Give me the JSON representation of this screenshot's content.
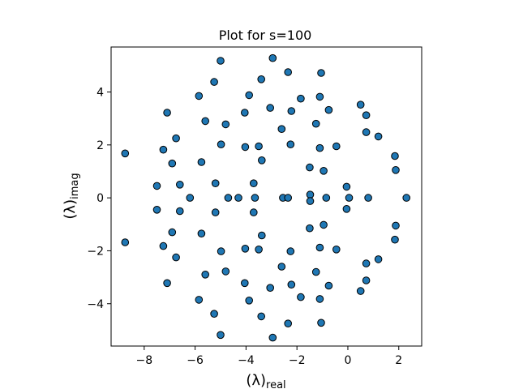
{
  "chart_data": {
    "type": "scatter",
    "title": "Plot for s=100",
    "xlabel": {
      "base": "(λ)",
      "subscript": "real"
    },
    "ylabel": {
      "base": "(λ)",
      "subscript": "imag"
    },
    "xlim": [
      -9.3,
      2.9
    ],
    "ylim": [
      -5.6,
      5.7
    ],
    "xticks": [
      -8,
      -6,
      -4,
      -2,
      0,
      2
    ],
    "yticks": [
      -4,
      -2,
      0,
      2,
      4
    ],
    "xtick_labels": [
      "−8",
      "−6",
      "−4",
      "−2",
      "0",
      "2"
    ],
    "ytick_labels": [
      "−4",
      "−2",
      "0",
      "2",
      "4"
    ],
    "grid": false,
    "marker_color": "#1f77b4",
    "marker_edge_color": "#000000",
    "points": [
      [
        -8.75,
        1.68
      ],
      [
        -8.75,
        -1.68
      ],
      [
        -7.5,
        0.45
      ],
      [
        -7.5,
        -0.45
      ],
      [
        -7.25,
        1.82
      ],
      [
        -7.25,
        -1.82
      ],
      [
        -7.1,
        3.22
      ],
      [
        -7.1,
        -3.22
      ],
      [
        -6.9,
        1.3
      ],
      [
        -6.9,
        -1.3
      ],
      [
        -6.75,
        2.25
      ],
      [
        -6.75,
        -2.25
      ],
      [
        -6.6,
        0.5
      ],
      [
        -6.6,
        -0.5
      ],
      [
        -6.2,
        0.0
      ],
      [
        -5.85,
        3.85
      ],
      [
        -5.85,
        -3.85
      ],
      [
        -5.75,
        1.35
      ],
      [
        -5.75,
        -1.35
      ],
      [
        -5.6,
        2.9
      ],
      [
        -5.6,
        -2.9
      ],
      [
        -5.25,
        4.38
      ],
      [
        -5.25,
        -4.38
      ],
      [
        -5.2,
        0.55
      ],
      [
        -5.2,
        -0.55
      ],
      [
        -5.0,
        5.18
      ],
      [
        -5.0,
        -5.18
      ],
      [
        -4.98,
        2.02
      ],
      [
        -4.98,
        -2.02
      ],
      [
        -4.8,
        2.78
      ],
      [
        -4.8,
        -2.78
      ],
      [
        -4.7,
        0.0
      ],
      [
        -4.3,
        0.0
      ],
      [
        -4.05,
        3.22
      ],
      [
        -4.05,
        -3.22
      ],
      [
        -4.03,
        1.92
      ],
      [
        -4.03,
        -1.92
      ],
      [
        -3.88,
        3.88
      ],
      [
        -3.88,
        -3.88
      ],
      [
        -3.7,
        0.55
      ],
      [
        -3.7,
        -0.55
      ],
      [
        -3.65,
        0.0
      ],
      [
        -3.5,
        1.95
      ],
      [
        -3.5,
        -1.95
      ],
      [
        -3.4,
        4.48
      ],
      [
        -3.4,
        -4.48
      ],
      [
        -3.38,
        1.42
      ],
      [
        -3.38,
        -1.42
      ],
      [
        -3.05,
        3.4
      ],
      [
        -3.05,
        -3.4
      ],
      [
        -2.95,
        5.28
      ],
      [
        -2.95,
        -5.28
      ],
      [
        -2.6,
        2.6
      ],
      [
        -2.6,
        -2.6
      ],
      [
        -2.55,
        0.0
      ],
      [
        -2.35,
        0.0
      ],
      [
        -2.35,
        4.75
      ],
      [
        -2.35,
        -4.75
      ],
      [
        -2.25,
        2.02
      ],
      [
        -2.25,
        -2.02
      ],
      [
        -2.22,
        3.28
      ],
      [
        -2.22,
        -3.28
      ],
      [
        -1.85,
        3.75
      ],
      [
        -1.85,
        -3.75
      ],
      [
        -1.5,
        1.15
      ],
      [
        -1.5,
        -1.15
      ],
      [
        -1.48,
        0.12
      ],
      [
        -1.48,
        -0.12
      ],
      [
        -1.25,
        2.8
      ],
      [
        -1.25,
        -2.8
      ],
      [
        -1.1,
        1.88
      ],
      [
        -1.1,
        -1.88
      ],
      [
        -1.1,
        3.82
      ],
      [
        -1.1,
        -3.82
      ],
      [
        -1.05,
        4.72
      ],
      [
        -1.05,
        -4.72
      ],
      [
        -0.95,
        1.02
      ],
      [
        -0.95,
        -1.02
      ],
      [
        -0.85,
        0.0
      ],
      [
        -0.75,
        3.32
      ],
      [
        -0.75,
        -3.32
      ],
      [
        -0.45,
        1.95
      ],
      [
        -0.45,
        -1.95
      ],
      [
        -0.05,
        0.42
      ],
      [
        -0.05,
        -0.42
      ],
      [
        0.05,
        0.0
      ],
      [
        0.5,
        3.52
      ],
      [
        0.5,
        -3.52
      ],
      [
        0.72,
        3.12
      ],
      [
        0.72,
        -3.12
      ],
      [
        0.72,
        2.48
      ],
      [
        0.72,
        -2.48
      ],
      [
        0.8,
        0.0
      ],
      [
        1.2,
        2.32
      ],
      [
        1.2,
        -2.32
      ],
      [
        1.85,
        1.58
      ],
      [
        1.85,
        -1.58
      ],
      [
        1.88,
        1.05
      ],
      [
        1.88,
        -1.05
      ],
      [
        2.3,
        0.0
      ]
    ]
  }
}
